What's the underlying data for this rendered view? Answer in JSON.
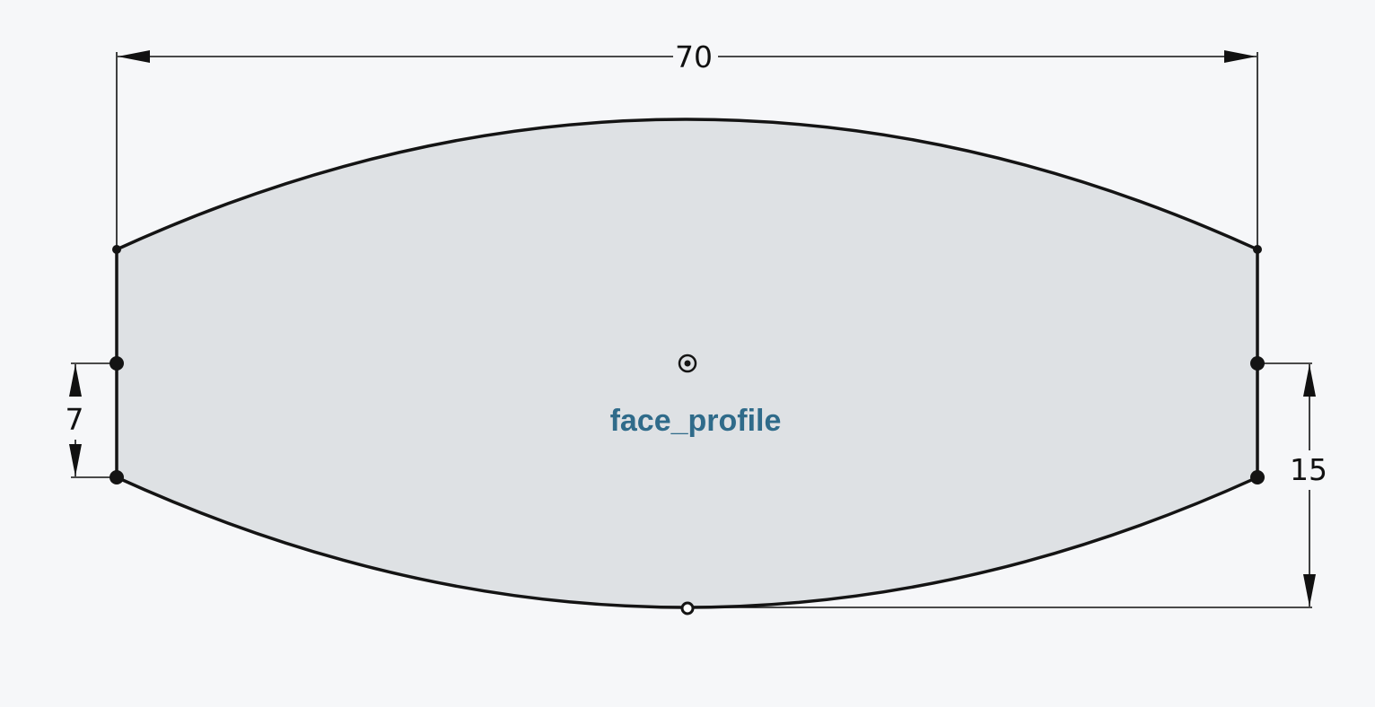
{
  "sketch": {
    "profile_name": "face_profile",
    "colors": {
      "background": "#f6f7f9",
      "profile_fill": "#dee1e4",
      "edge": "#141414",
      "label": "#2f6b8a"
    },
    "dimensions": {
      "overall_width": "70",
      "left_offset": "7",
      "right_height": "15"
    }
  }
}
